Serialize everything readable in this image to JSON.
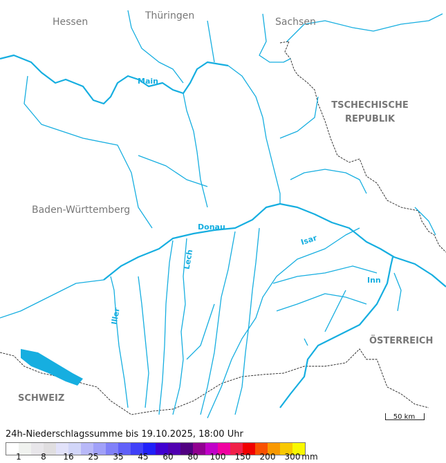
{
  "map": {
    "regions": [
      {
        "name": "Hessen"
      },
      {
        "name": "Thüringen"
      },
      {
        "name": "Sachsen"
      },
      {
        "name": "TSCHECHISCHE REPUBLIK"
      },
      {
        "name": "Baden-Württemberg"
      },
      {
        "name": "ÖSTERREICH"
      },
      {
        "name": "SCHWEIZ"
      }
    ],
    "rivers": [
      {
        "name": "Main"
      },
      {
        "name": "Donau"
      },
      {
        "name": "Isar"
      },
      {
        "name": "Lech"
      },
      {
        "name": "Iller"
      },
      {
        "name": "Inn"
      }
    ],
    "river_color": "#16aee0",
    "scale_bar": "50 km"
  },
  "legend": {
    "title": "24h-Niederschlagssumme bis 19.10.2025, 18:00 Uhr",
    "unit": "mm",
    "colors": [
      "#ffffff",
      "#f0f2ef",
      "#e8e6ea",
      "#e0dee0",
      "#e2e2fa",
      "#d2d6f8",
      "#b8b8f8",
      "#a0a0f8",
      "#8080f8",
      "#6060f8",
      "#4040f8",
      "#2020f8",
      "#4000d0",
      "#5000b0",
      "#500080",
      "#900090",
      "#c000c8",
      "#f000a0",
      "#f02048",
      "#f00000",
      "#f85000",
      "#f89800",
      "#f8c800",
      "#f8f800"
    ],
    "labels": [
      "1",
      "8",
      "16",
      "25",
      "35",
      "45",
      "60",
      "80",
      "100",
      "150",
      "200",
      "300"
    ]
  }
}
